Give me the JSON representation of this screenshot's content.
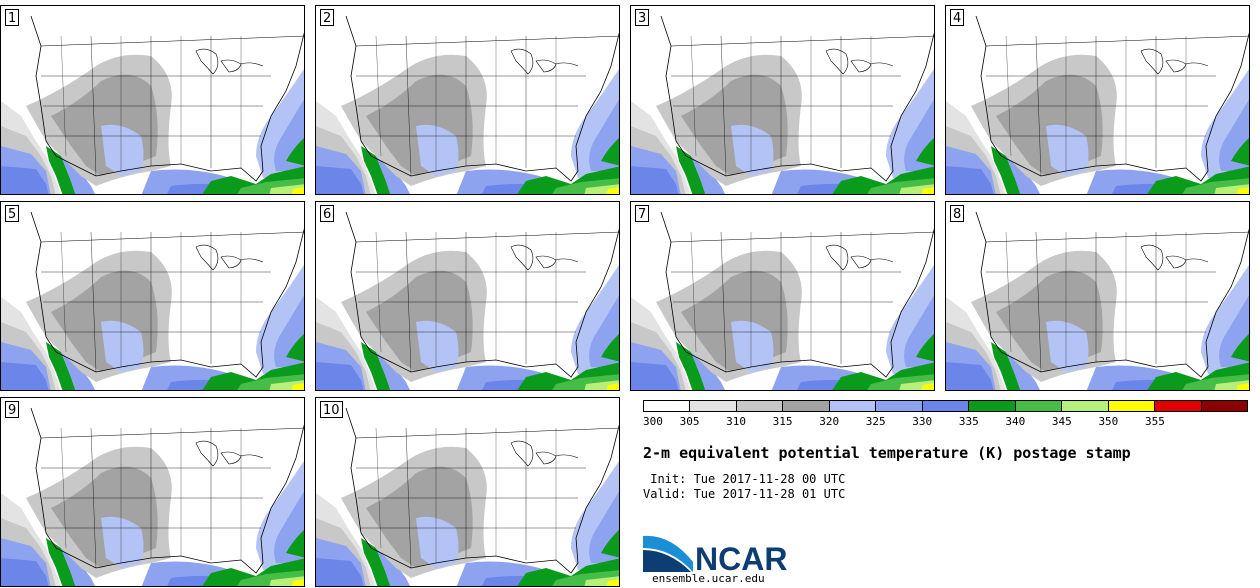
{
  "panels": [
    {
      "label": "1"
    },
    {
      "label": "2"
    },
    {
      "label": "3"
    },
    {
      "label": "4"
    },
    {
      "label": "5"
    },
    {
      "label": "6"
    },
    {
      "label": "7"
    },
    {
      "label": "8"
    },
    {
      "label": "9"
    },
    {
      "label": "10"
    }
  ],
  "colorbar": {
    "ticks": [
      "300",
      "305",
      "310",
      "315",
      "320",
      "325",
      "330",
      "335",
      "340",
      "345",
      "350",
      "355"
    ],
    "colors": [
      "#ffffff",
      "#e3e3e3",
      "#c8c8c8",
      "#a3a3a3",
      "#b3c3f5",
      "#8ea3f0",
      "#6b86e8",
      "#0a9b1c",
      "#46bd46",
      "#b6f07a",
      "#ffff00",
      "#e10000",
      "#8b0000"
    ]
  },
  "title": "2-m equivalent potential temperature (K) postage stamp",
  "init_line": " Init: Tue 2017-11-28 00 UTC",
  "valid_line": "Valid: Tue 2017-11-28 01 UTC",
  "logo": {
    "text": "NCAR",
    "url": "ensemble.ucar.edu"
  }
}
